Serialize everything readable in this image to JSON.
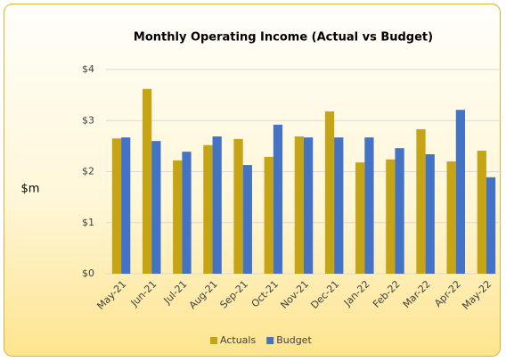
{
  "chart_data": {
    "type": "bar",
    "title": "Monthly Operating Income (Actual vs Budget)",
    "y_label": "$m",
    "categories": [
      "May-21",
      "Jun-21",
      "Jul-21",
      "Aug-21",
      "Sep-21",
      "Oct-21",
      "Nov-21",
      "Dec-21",
      "Jan-22",
      "Feb-22",
      "Mar-22",
      "Apr-22",
      "May-22"
    ],
    "series": [
      {
        "name": "Actuals",
        "color": "#c5a416",
        "values": [
          2.65,
          3.62,
          2.22,
          2.52,
          2.64,
          2.29,
          2.69,
          3.18,
          2.18,
          2.24,
          2.83,
          2.2,
          2.41
        ]
      },
      {
        "name": "Budget",
        "color": "#4472c4",
        "values": [
          2.67,
          2.6,
          2.39,
          2.69,
          2.13,
          2.92,
          2.67,
          2.67,
          2.67,
          2.46,
          2.34,
          3.21,
          1.89
        ]
      }
    ],
    "ylim": [
      0,
      4
    ],
    "yticks": [
      {
        "value": 0,
        "label": "$0"
      },
      {
        "value": 1,
        "label": "$1"
      },
      {
        "value": 2,
        "label": "$2"
      },
      {
        "value": 3,
        "label": "$3"
      },
      {
        "value": 4,
        "label": "$4"
      }
    ],
    "grid": true,
    "legend": "bottom"
  }
}
